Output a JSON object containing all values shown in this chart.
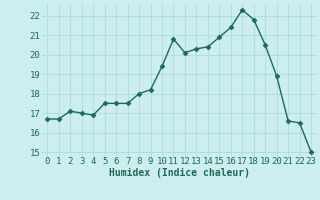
{
  "x": [
    0,
    1,
    2,
    3,
    4,
    5,
    6,
    7,
    8,
    9,
    10,
    11,
    12,
    13,
    14,
    15,
    16,
    17,
    18,
    19,
    20,
    21,
    22,
    23
  ],
  "y": [
    16.7,
    16.7,
    17.1,
    17.0,
    16.9,
    17.5,
    17.5,
    17.5,
    18.0,
    18.2,
    19.4,
    20.8,
    20.1,
    20.3,
    20.4,
    20.9,
    21.4,
    22.3,
    21.8,
    20.5,
    18.9,
    16.6,
    16.5,
    15.0
  ],
  "line_color": "#1a6b5a",
  "marker": "D",
  "marker_size": 2.5,
  "bg_color": "#cceeee",
  "grid_color": "#aadddd",
  "xlabel": "Humidex (Indice chaleur)",
  "ylim": [
    14.8,
    22.6
  ],
  "xlim": [
    -0.5,
    23.5
  ],
  "yticks": [
    15,
    16,
    17,
    18,
    19,
    20,
    21,
    22
  ],
  "xticks": [
    0,
    1,
    2,
    3,
    4,
    5,
    6,
    7,
    8,
    9,
    10,
    11,
    12,
    13,
    14,
    15,
    16,
    17,
    18,
    19,
    20,
    21,
    22,
    23
  ],
  "tick_label_color": "#1a6b5a",
  "label_fontsize": 7,
  "tick_fontsize": 6.5
}
